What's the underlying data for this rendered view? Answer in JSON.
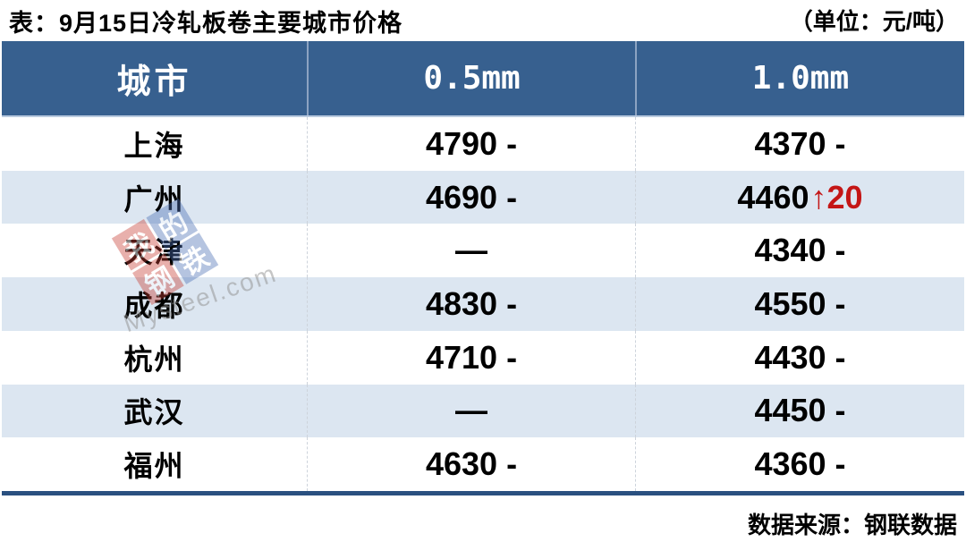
{
  "header": {
    "title": "表：9月15日冷轧板卷主要城市价格",
    "unit": "（单位：元/吨）"
  },
  "table": {
    "columns": [
      "城市",
      "0.5mm",
      "1.0mm"
    ],
    "rows": [
      {
        "city": "上海",
        "p05": {
          "value": "4790",
          "suffix": "-"
        },
        "p10": {
          "value": "4370",
          "suffix": "-"
        }
      },
      {
        "city": "广州",
        "p05": {
          "value": "4690",
          "suffix": "-"
        },
        "p10": {
          "value": "4460",
          "change": "↑20"
        }
      },
      {
        "city": "天津",
        "p05": {
          "value": "—"
        },
        "p10": {
          "value": "4340",
          "suffix": "-"
        }
      },
      {
        "city": "成都",
        "p05": {
          "value": "4830",
          "suffix": "-"
        },
        "p10": {
          "value": "4550",
          "suffix": "-"
        }
      },
      {
        "city": "杭州",
        "p05": {
          "value": "4710",
          "suffix": "-"
        },
        "p10": {
          "value": "4430",
          "suffix": "-"
        }
      },
      {
        "city": "武汉",
        "p05": {
          "value": "—"
        },
        "p10": {
          "value": "4450",
          "suffix": "-"
        }
      },
      {
        "city": "福州",
        "p05": {
          "value": "4630",
          "suffix": "-"
        },
        "p10": {
          "value": "4360",
          "suffix": "-"
        }
      }
    ]
  },
  "chart_data": {
    "type": "table",
    "title": "表：9月15日冷轧板卷主要城市价格",
    "unit": "元/吨",
    "columns": [
      "城市",
      "0.5mm",
      "1.0mm"
    ],
    "rows": [
      [
        "上海",
        "4790 -",
        "4370 -"
      ],
      [
        "广州",
        "4690 -",
        "4460 ↑20"
      ],
      [
        "天津",
        "—",
        "4340 -"
      ],
      [
        "成都",
        "4830 -",
        "4550 -"
      ],
      [
        "杭州",
        "4710 -",
        "4430 -"
      ],
      [
        "武汉",
        "—",
        "4450 -"
      ],
      [
        "福州",
        "4630 -",
        "4360 -"
      ]
    ],
    "price_changes": [
      {
        "city": "广州",
        "column": "1.0mm",
        "change": "+20"
      }
    ]
  },
  "watermark": {
    "logo_chars": [
      "我",
      "的",
      "钢",
      "铁"
    ],
    "text": "Mysteel.com"
  },
  "footer": {
    "source": "数据来源：钢联数据"
  },
  "colors": {
    "header_bg": "#37608F",
    "alt_row_bg": "#DCE6F1",
    "table_bottom_border": "#2A5080",
    "price_up_red": "#C41616",
    "logo_red": "#C63E34",
    "logo_blue": "#4A6FB5"
  }
}
